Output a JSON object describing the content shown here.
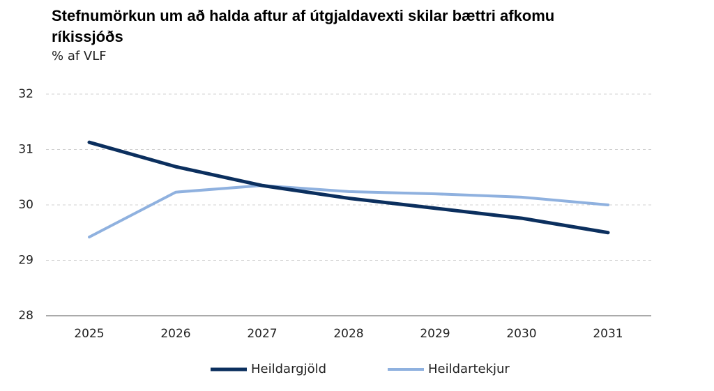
{
  "chart_data": {
    "type": "line",
    "title": "Stefnumörkun um að halda aftur af útgjaldavexti skilar bættri afkomu ríkissjóðs",
    "subtitle": "% af VLF",
    "categories": [
      "2025",
      "2026",
      "2027",
      "2028",
      "2029",
      "2030",
      "2031"
    ],
    "series": [
      {
        "name": "Heildargjöld",
        "color": "#0b2f5e",
        "values": [
          31.13,
          30.69,
          30.35,
          30.12,
          29.94,
          29.76,
          29.5
        ]
      },
      {
        "name": "Heildartekjur",
        "color": "#8fb1df",
        "values": [
          29.42,
          30.23,
          30.35,
          30.24,
          30.2,
          30.14,
          30.0
        ]
      }
    ],
    "ylim": [
      28,
      32
    ],
    "yticks": [
      28,
      29,
      30,
      31,
      32
    ],
    "grid": true
  }
}
